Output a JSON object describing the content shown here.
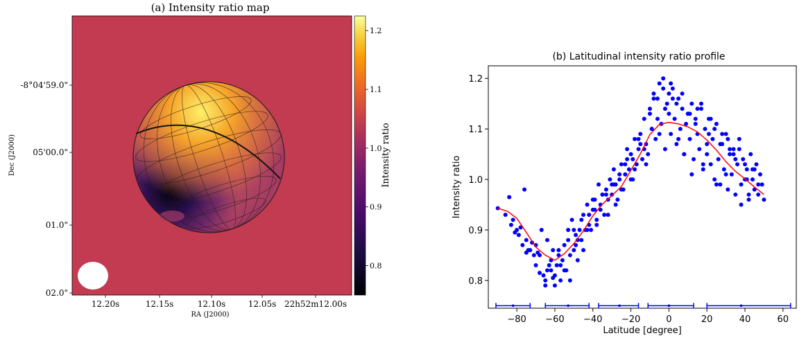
{
  "chart_data": [
    {
      "type": "heatmap",
      "title": "(a) Intensity ratio map",
      "xlabel": "RA (J2000)",
      "ylabel": "Dec (J2000)",
      "x_tick_labels": [
        "12.20s",
        "12.15s",
        "12.10s",
        "12.05s",
        "22h52m12.00s"
      ],
      "y_tick_labels": [
        "-8°04'59.0\"",
        "05'00.0\"",
        "01.0\"",
        "02.0\""
      ],
      "colorbar": {
        "label": "Intensity ratio",
        "ticks": [
          0.8,
          0.9,
          1.0,
          1.1,
          1.2
        ],
        "range": [
          0.75,
          1.225
        ],
        "colormap": "inferno"
      },
      "background_value": 1.0,
      "beam": "ellipse bottom-left"
    },
    {
      "type": "scatter",
      "title": "(b) Latitudinal intensity ratio profile",
      "xlabel": "Latitude [degree]",
      "ylabel": "Intensity ratio",
      "xlim": [
        -95,
        67
      ],
      "ylim": [
        0.745,
        1.225
      ],
      "x_ticks": [
        -80,
        -60,
        -40,
        -20,
        0,
        20,
        40,
        60
      ],
      "y_ticks": [
        0.8,
        0.9,
        1.0,
        1.1,
        1.2
      ],
      "grid": false,
      "series": [
        {
          "kind": "fit-line",
          "color": "#ff0000",
          "x": [
            -90,
            -85,
            -80,
            -75,
            -70,
            -65,
            -60,
            -55,
            -50,
            -45,
            -40,
            -35,
            -30,
            -25,
            -20,
            -15,
            -10,
            -5,
            0,
            5,
            10,
            15,
            20,
            25,
            30,
            35,
            40,
            45,
            50
          ],
          "y": [
            0.943,
            0.937,
            0.923,
            0.895,
            0.866,
            0.85,
            0.84,
            0.853,
            0.873,
            0.898,
            0.928,
            0.951,
            0.968,
            0.986,
            1.018,
            1.051,
            1.089,
            1.109,
            1.113,
            1.11,
            1.104,
            1.094,
            1.078,
            1.058,
            1.035,
            1.016,
            1.001,
            0.985,
            0.97
          ]
        },
        {
          "kind": "points",
          "color": "#0000ff",
          "x": [
            -90,
            -86,
            -84,
            -83,
            -82,
            -81,
            -80,
            -79,
            -78,
            -77,
            -76,
            -75,
            -74,
            -73,
            -72,
            -71,
            -70,
            -69,
            -68,
            -67,
            -66,
            -65,
            -64,
            -63,
            -62,
            -61,
            -60,
            -59,
            -58,
            -57,
            -56,
            -55,
            -54,
            -53,
            -52,
            -51,
            -50,
            -49,
            -48,
            -47,
            -46,
            -45,
            -44,
            -43,
            -42,
            -41,
            -40,
            -39,
            -38,
            -37,
            -36,
            -35,
            -34,
            -33,
            -32,
            -31,
            -30,
            -29,
            -28,
            -27,
            -26,
            -25,
            -24,
            -23,
            -22,
            -21,
            -20,
            -19,
            -18,
            -17,
            -16,
            -15,
            -14,
            -13,
            -12,
            -11,
            -10,
            -9,
            -8,
            -7,
            -6,
            -5,
            -4,
            -3,
            -2,
            -1,
            0,
            1,
            2,
            3,
            4,
            5,
            6,
            7,
            8,
            9,
            10,
            11,
            12,
            13,
            14,
            15,
            16,
            17,
            18,
            19,
            20,
            21,
            22,
            23,
            24,
            25,
            26,
            27,
            28,
            29,
            30,
            31,
            32,
            33,
            34,
            35,
            36,
            37,
            38,
            39,
            40,
            41,
            42,
            43,
            44,
            45,
            46,
            47,
            48,
            49,
            50,
            -75,
            -70,
            -65,
            -62,
            -60,
            -58,
            -55,
            -52,
            -50,
            -48,
            -45,
            -42,
            -40,
            -38,
            -35,
            -32,
            -30,
            -28,
            -25,
            -22,
            -20,
            -18,
            -15,
            -12,
            -10,
            -8,
            -5,
            -2,
            0,
            2,
            5,
            8,
            10,
            12,
            15,
            18,
            20,
            22,
            25,
            28,
            30,
            32,
            35,
            38,
            40,
            42,
            45,
            -68,
            -64,
            -61,
            -57,
            -53,
            -49,
            -46,
            -43,
            -39,
            -36,
            -33,
            -29,
            -26,
            -23,
            -19,
            -16,
            -13,
            -9,
            -6,
            -3,
            1,
            4,
            7,
            11,
            14,
            17,
            21,
            24,
            27,
            31,
            34,
            37,
            41,
            44,
            47
          ],
          "y": [
            0.943,
            0.93,
            0.965,
            0.91,
            0.92,
            0.895,
            0.9,
            0.89,
            0.905,
            0.87,
            0.98,
            0.855,
            0.86,
            0.86,
            0.875,
            0.85,
            0.83,
            0.855,
            0.815,
            0.9,
            0.81,
            0.79,
            0.88,
            0.83,
            0.84,
            0.805,
            0.81,
            0.83,
            0.86,
            0.8,
            0.84,
            0.87,
            0.82,
            0.9,
            0.85,
            0.92,
            0.86,
            0.89,
            0.88,
            0.9,
            0.88,
            0.93,
            0.9,
            0.95,
            0.93,
            0.9,
            0.96,
            0.94,
            0.92,
            0.99,
            0.95,
            0.97,
            0.93,
            0.98,
            0.96,
            1.0,
            0.97,
            1.02,
            0.99,
            0.96,
            1.0,
            1.03,
            0.98,
            1.01,
            1.06,
            1.02,
            1.05,
            1.0,
            1.08,
            1.03,
            1.06,
            1.09,
            1.04,
            1.12,
            1.07,
            1.05,
            1.14,
            1.1,
            1.17,
            1.08,
            1.12,
            1.19,
            1.11,
            1.2,
            1.06,
            1.15,
            1.13,
            1.09,
            1.18,
            1.12,
            1.07,
            1.16,
            1.1,
            1.14,
            1.05,
            1.11,
            1.13,
            1.08,
            1.15,
            1.04,
            1.12,
            1.09,
            1.06,
            1.14,
            1.02,
            1.1,
            1.05,
            1.12,
            1.03,
            1.08,
            1.0,
            1.11,
            1.04,
            0.99,
            1.07,
            1.02,
            1.09,
            0.98,
            1.05,
            1.01,
            1.06,
            0.97,
            1.03,
            1.08,
            0.99,
            1.04,
            1.0,
            1.02,
            0.96,
            1.05,
            1.0,
            0.98,
            1.03,
            0.97,
            1.01,
            0.99,
            0.96,
            0.88,
            0.87,
            0.8,
            0.82,
            0.79,
            0.85,
            0.82,
            0.8,
            0.9,
            0.84,
            0.86,
            0.91,
            0.94,
            0.91,
            0.97,
            0.93,
            0.99,
            0.95,
            0.98,
            1.04,
            1.0,
            1.02,
            1.07,
            1.03,
            1.13,
            1.16,
            1.09,
            1.14,
            1.17,
            1.16,
            1.08,
            1.05,
            1.13,
            1.01,
            1.14,
            1.03,
            1.07,
            1.12,
            0.99,
            1.09,
            1.01,
            1.06,
            1.04,
            0.95,
            1.03,
            0.97,
            1.02,
            0.85,
            0.82,
            0.86,
            0.83,
            0.88,
            0.87,
            0.92,
            0.9,
            0.96,
            0.94,
            0.97,
            0.99,
            1.01,
            1.03,
            1.04,
            1.08,
            1.06,
            1.1,
            1.16,
            1.18,
            1.19,
            1.15,
            1.17,
            1.13,
            1.11,
            1.15,
            1.09,
            1.1,
            1.07,
            1.08,
            1.05,
            1.06,
            1.0,
            1.02,
            0.99
          ]
        },
        {
          "kind": "error-bars",
          "color": "#0000ff",
          "y": 0.75,
          "centers": [
            -82,
            -53,
            -26,
            0,
            38
          ],
          "lows": [
            -91,
            -65,
            -37,
            -11,
            20
          ],
          "highs": [
            -73,
            -42,
            -16,
            13,
            64
          ]
        }
      ]
    }
  ]
}
